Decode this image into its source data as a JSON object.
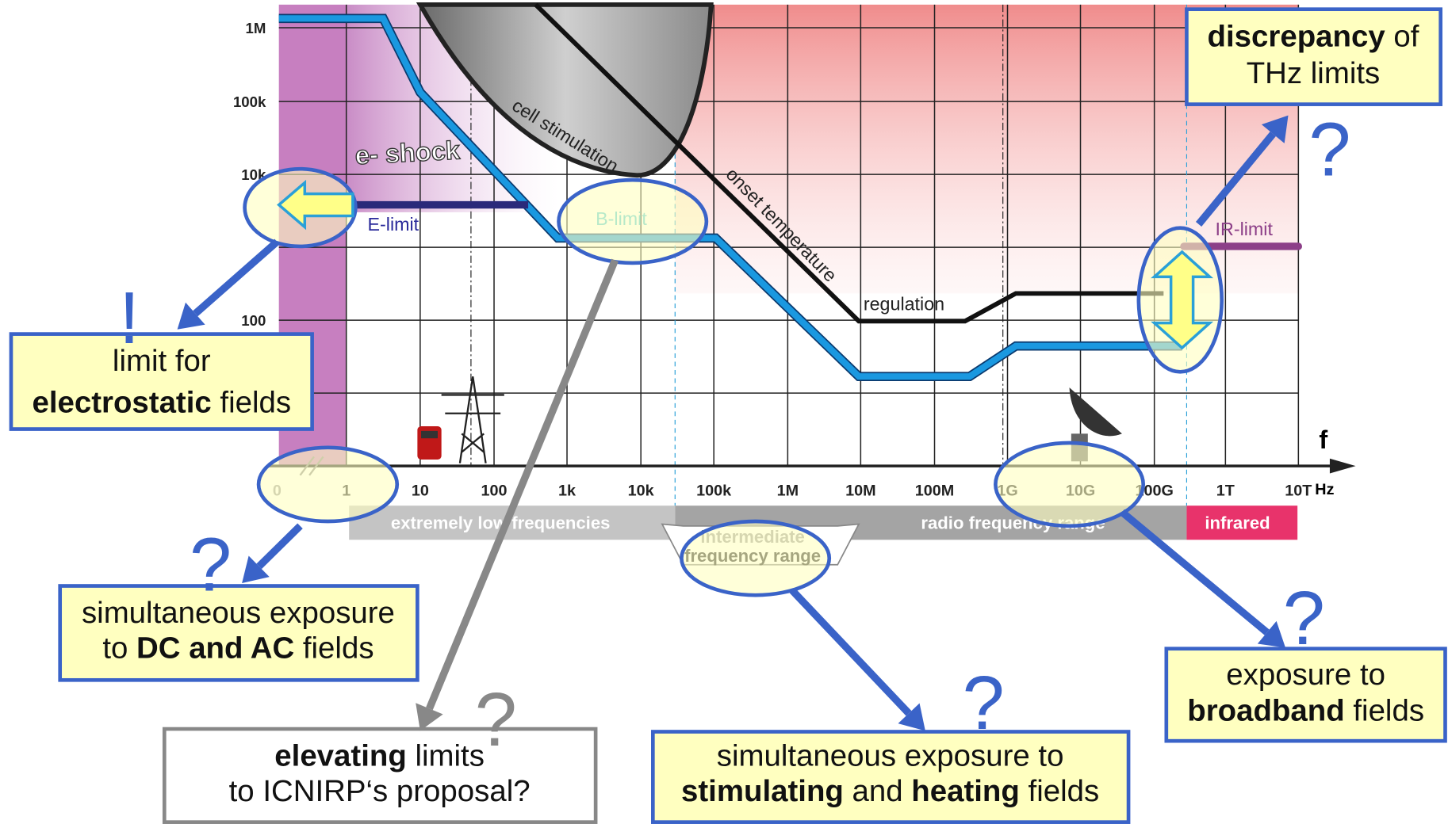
{
  "y_axis": {
    "labels": [
      "1M",
      "100k",
      "10k",
      "100"
    ]
  },
  "x_axis": {
    "name": "f",
    "unit": "Hz",
    "labels": [
      "0",
      "1",
      "10",
      "100",
      "1k",
      "10k",
      "100k",
      "1M",
      "10M",
      "100M",
      "1G",
      "10G",
      "100G",
      "1T",
      "10T"
    ]
  },
  "bands": {
    "elf": "extremely low frequencies",
    "intermediate": [
      "intermediate",
      "frequency range"
    ],
    "radio": "radio frequency range",
    "infrared": "infrared"
  },
  "curve_labels": {
    "shock": "e- shock",
    "cell": "cell stimulation",
    "onset": "onset temperature",
    "regulation": "regulation",
    "e_limit": "E-limit",
    "b_limit": "B-limit",
    "ir_limit": "IR-limit"
  },
  "marks": {
    "exclamation": "!",
    "question": "?"
  },
  "callouts": [
    {
      "lines": [
        [
          {
            "text": "limit for",
            "bold": false
          }
        ],
        [
          {
            "text": "electrostatic",
            "bold": true
          },
          {
            "text": " fields",
            "bold": false
          }
        ]
      ]
    },
    {
      "lines": [
        [
          {
            "text": "simultaneous exposure",
            "bold": false
          }
        ],
        [
          {
            "text": "to ",
            "bold": false
          },
          {
            "text": "DC and AC",
            "bold": true
          },
          {
            "text": " fields",
            "bold": false
          }
        ]
      ]
    },
    {
      "lines": [
        [
          {
            "text": "elevating",
            "bold": true
          },
          {
            "text": " limits",
            "bold": false
          }
        ],
        [
          {
            "text": "to ICNIRP‘s proposal?",
            "bold": false
          }
        ]
      ]
    },
    {
      "lines": [
        [
          {
            "text": "simultaneous exposure to",
            "bold": false
          }
        ],
        [
          {
            "text": "stimulating",
            "bold": true
          },
          {
            "text": " and ",
            "bold": false
          },
          {
            "text": "heating",
            "bold": true
          },
          {
            "text": " fields",
            "bold": false
          }
        ]
      ]
    },
    {
      "lines": [
        [
          {
            "text": "exposure to",
            "bold": false
          }
        ],
        [
          {
            "text": "broadband",
            "bold": true
          },
          {
            "text": " fields",
            "bold": false
          }
        ]
      ]
    },
    {
      "lines": [
        [
          {
            "text": "discrepancy",
            "bold": true
          },
          {
            "text": " of",
            "bold": false
          }
        ],
        [
          {
            "text": "THz limits",
            "bold": false
          }
        ]
      ]
    }
  ]
}
